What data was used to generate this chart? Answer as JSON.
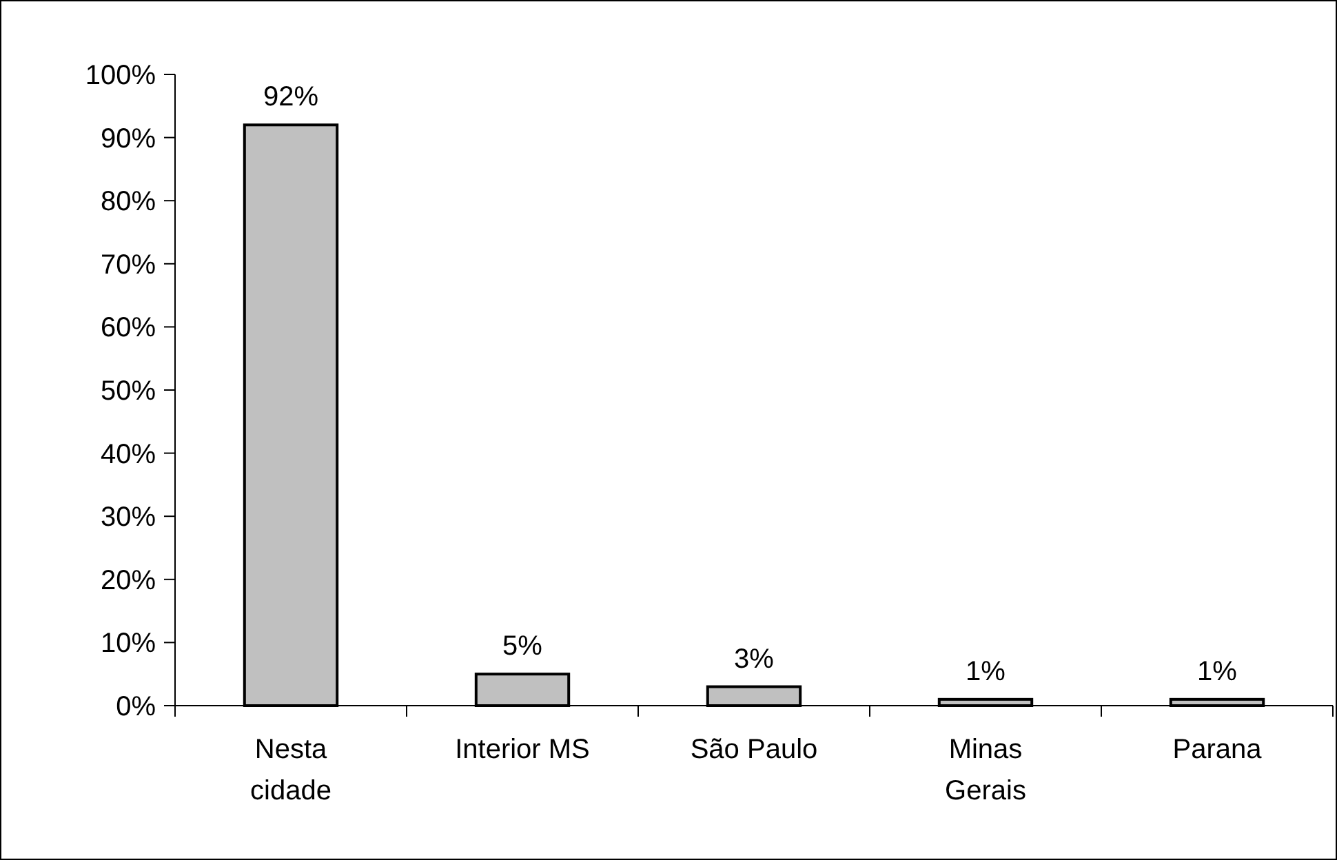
{
  "chart_data": {
    "type": "bar",
    "categories": [
      "Nesta cidade",
      "Interior MS",
      "São Paulo",
      "Minas Gerais",
      "Parana"
    ],
    "values": [
      92,
      5,
      3,
      1,
      1
    ],
    "value_labels": [
      "92%",
      "5%",
      "3%",
      "1%",
      "1%"
    ],
    "color": "#c0c0c0",
    "ylim": [
      0,
      100
    ],
    "yticks": [
      {
        "value": 0,
        "label": "0%"
      },
      {
        "value": 10,
        "label": "10%"
      },
      {
        "value": 20,
        "label": "20%"
      },
      {
        "value": 30,
        "label": "30%"
      },
      {
        "value": 40,
        "label": "40%"
      },
      {
        "value": 50,
        "label": "50%"
      },
      {
        "value": 60,
        "label": "60%"
      },
      {
        "value": 70,
        "label": "70%"
      },
      {
        "value": 80,
        "label": "80%"
      },
      {
        "value": 90,
        "label": "90%"
      },
      {
        "value": 100,
        "label": "100%"
      }
    ],
    "grid": false
  }
}
